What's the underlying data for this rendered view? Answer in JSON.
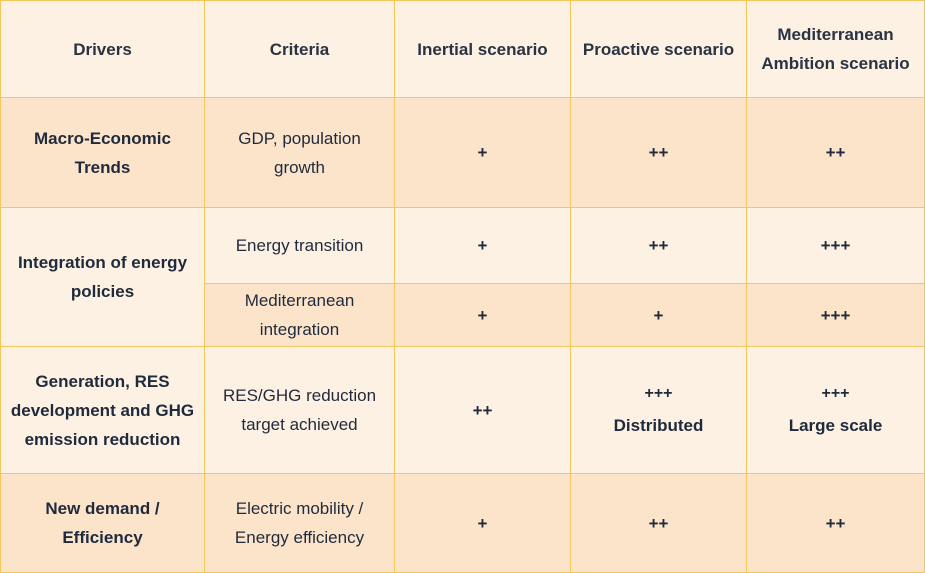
{
  "headers": {
    "drivers": "Drivers",
    "criteria": "Criteria",
    "inertial": "Inertial scenario",
    "proactive": "Proactive scenario",
    "mediterranean_line1": "Mediterranean",
    "mediterranean_line2": "Ambition scenario"
  },
  "rows": {
    "macro": {
      "driver_line1": "Macro-Economic",
      "driver_line2": "Trends",
      "criteria_line1": "GDP, population",
      "criteria_line2": "growth",
      "inertial": "+",
      "proactive": "++",
      "mediterranean": "++"
    },
    "integration": {
      "driver_line1": "Integration of energy",
      "driver_line2": "policies",
      "energy_transition": {
        "criteria": "Energy transition",
        "inertial": "+",
        "proactive": "++",
        "mediterranean": "+++"
      },
      "med_integration": {
        "criteria_line1": "Mediterranean",
        "criteria_line2": "integration",
        "inertial": "+",
        "proactive": "+",
        "mediterranean": "+++"
      }
    },
    "generation": {
      "driver_line1": "Generation, RES",
      "driver_line2": "development and GHG",
      "driver_line3": "emission reduction",
      "criteria_line1": "RES/GHG reduction",
      "criteria_line2": "target achieved",
      "inertial": "++",
      "proactive": "+++",
      "proactive_note": "Distributed",
      "mediterranean": "+++",
      "mediterranean_note": "Large scale"
    },
    "demand": {
      "driver_line1": "New demand /",
      "driver_line2": "Efficiency",
      "criteria_line1": "Electric mobility /",
      "criteria_line2": "Energy efficiency",
      "inertial": "+",
      "proactive": "++",
      "mediterranean": "++"
    }
  },
  "colors": {
    "border": "#f2c75c",
    "light_fill": "#fdf1e4",
    "dark_fill": "#fce4cb",
    "text": "#1f2a3c"
  }
}
